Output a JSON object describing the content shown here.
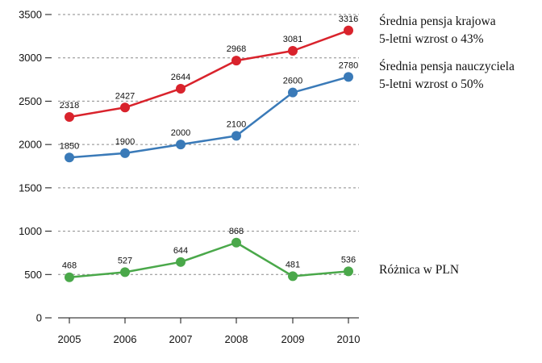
{
  "chart_data": {
    "type": "line",
    "x": [
      "2005",
      "2006",
      "2007",
      "2008",
      "2009",
      "2010"
    ],
    "ylim": [
      0,
      3500
    ],
    "yticks": [
      0,
      500,
      1000,
      1500,
      2000,
      2500,
      3000,
      3500
    ],
    "grid": "horizontal dashed",
    "series": [
      {
        "name": "Średnia pensja krajowa",
        "subtitle": "5-letni wzrost o 43%",
        "color": "#d9232c",
        "values": [
          2318,
          2427,
          2644,
          2968,
          3081,
          3316
        ]
      },
      {
        "name": "Średnia pensja nauczyciela",
        "subtitle": "5-letni wzrost o 50%",
        "color": "#3a7ab8",
        "values": [
          1850,
          1900,
          2000,
          2100,
          2600,
          2780
        ]
      },
      {
        "name": "Różnica w PLN",
        "color": "#4aa84a",
        "values": [
          468,
          527,
          644,
          868,
          481,
          536
        ]
      }
    ]
  }
}
